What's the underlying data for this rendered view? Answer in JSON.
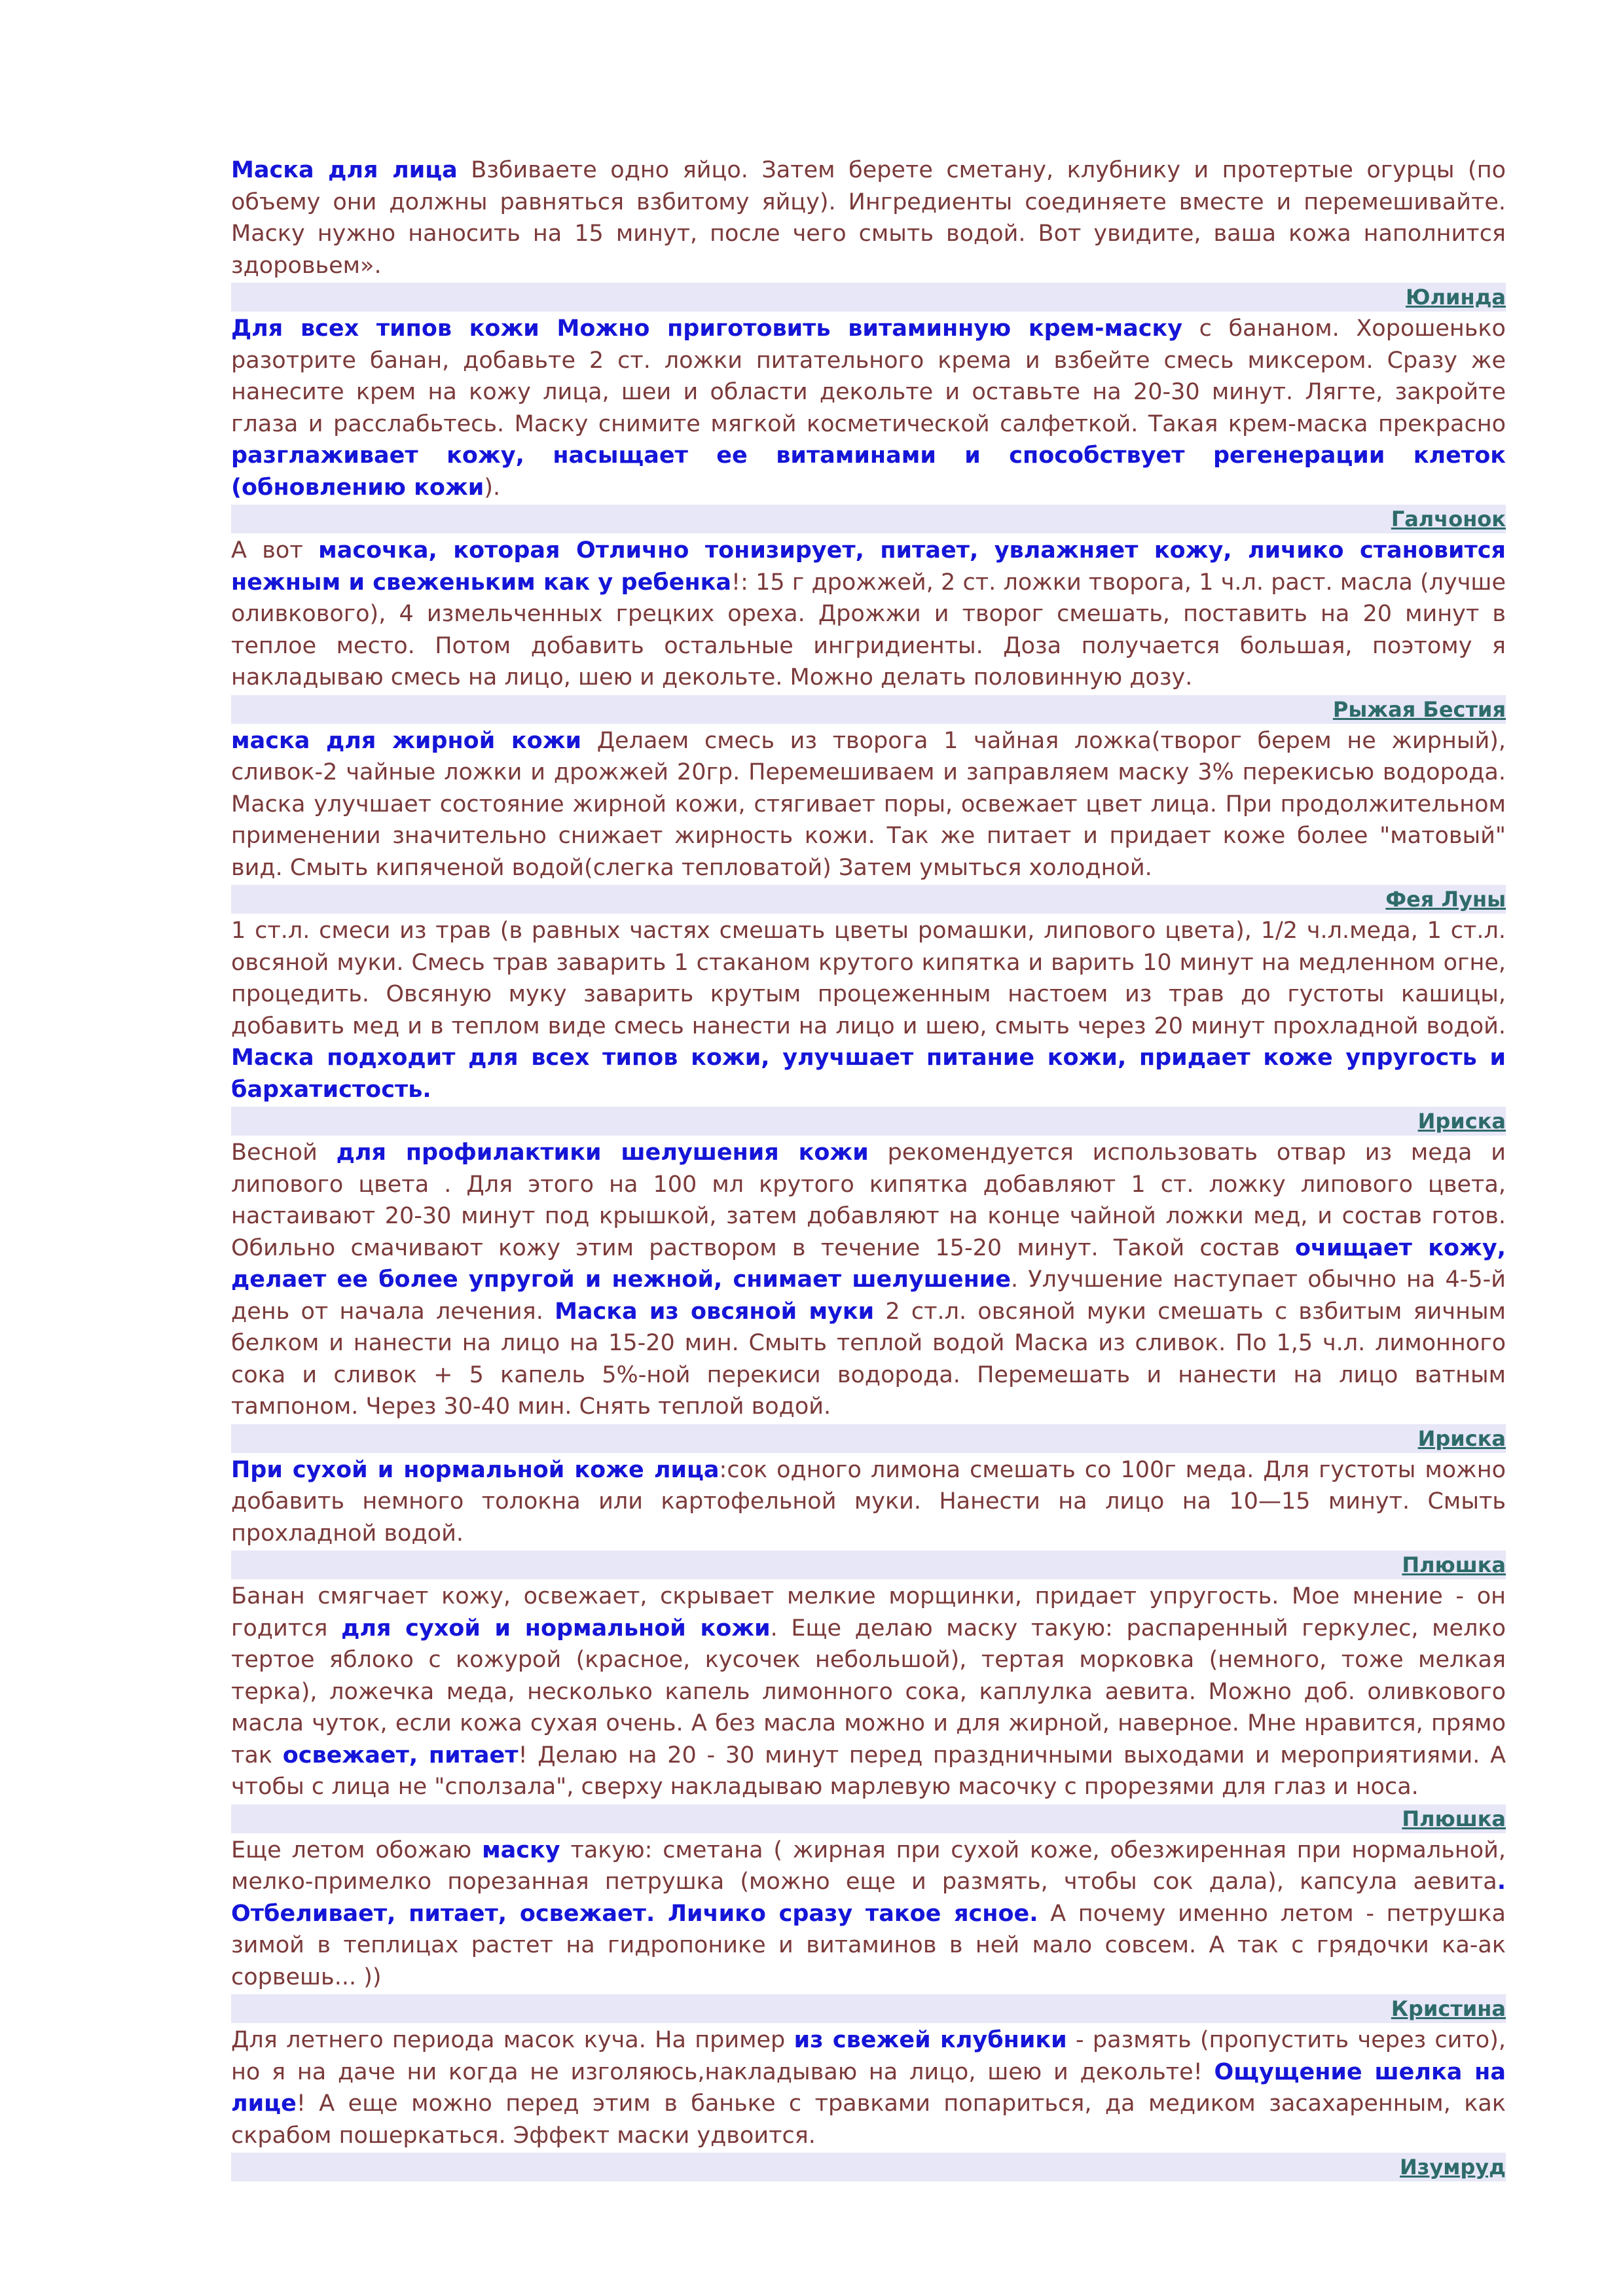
{
  "posts": [
    {
      "segments": [
        {
          "text": "Маска для лица",
          "strong": true
        },
        {
          "text": " Взбиваете одно яйцо. Затем берете сметану, клубнику и протертые огурцы (по объему они должны равняться взбитому яйцу). Ингредиенты соединяете вместе и перемешивайте. Маску нужно наносить на 15 минут, после чего смыть водой. Вот увидите, ваша кожа наполнится здоровьем».",
          "strong": false
        }
      ],
      "author": "Юлинда"
    },
    {
      "segments": [
        {
          "text": "Для всех типов кожи Можно приготовить витаминную крем-маску",
          "strong": true
        },
        {
          "text": " с бананом. Хорошенько разотрите банан, добавьте 2 ст. ложки питательного крема и взбейте смесь миксером. Сразу же нанесите крем на кожу лица, шеи и области декольте и оставьте на 20-30 минут. Лягте, закройте глаза и расслабьтесь. Маску снимите мягкой косметической салфеткой. Такая крем-маска прекрасно ",
          "strong": false
        },
        {
          "text": "разглаживает кожу, насыщает ее витаминами и способствует регенерации клеток (обновлению кожи",
          "strong": true
        },
        {
          "text": ").",
          "strong": false
        }
      ],
      "author": "Галчонок"
    },
    {
      "segments": [
        {
          "text": "А вот ",
          "strong": false
        },
        {
          "text": "масочка, которая Отлично тонизирует, питает, увлажняет кожу, личико становится нежным и свеженьким как у ребенка",
          "strong": true
        },
        {
          "text": "!: 15 г дрожжей, 2 ст. ложки творога, 1 ч.л. раст. масла (лучше оливкового), 4 измельченных грецких ореха. Дрожжи и творог смешать, поставить на 20 минут в теплое место. Потом добавить остальные ингридиенты. Доза получается большая, поэтому я накладываю смесь на лицо, шею и декольте. Можно делать половинную дозу.",
          "strong": false
        }
      ],
      "author": "Рыжая Бестия"
    },
    {
      "segments": [
        {
          "text": "маска для жирной кожи",
          "strong": true
        },
        {
          "text": " Делаем смесь из творога 1 чайная ложка(творог берем не жирный), сливок-2 чайные ложки и дрожжей 20гр. Перемешиваем и заправляем маску 3% перекисью водорода. Маска улучшает состояние жирной кожи, стягивает поры, освежает цвет лица. При продолжительном применении значительно снижает жирность кожи. Так же питает и придает коже более \"матовый\" вид. Смыть кипяченой водой(слегка тепловатой) Затем умыться холодной.",
          "strong": false
        }
      ],
      "author": "Фея Луны"
    },
    {
      "segments": [
        {
          "text": " 1 ст.л. смеси из трав (в равных частях смешать цветы ромашки, липового цвета), 1/2 ч.л.меда, 1 ст.л. овсяной муки. Смесь трав заварить 1 стаканом крутого кипятка и варить 10 минут на медленном огне, процедить. Овсяную муку заварить крутым процеженным настоем из трав до густоты кашицы, добавить мед и в теплом виде смесь нанести на лицо и шею, смыть через 20 минут прохладной водой. ",
          "strong": false
        },
        {
          "text": "Маска подходит для всех типов кожи, улучшает питание кожи, придает коже упругость и бархатистость.",
          "strong": true
        }
      ],
      "author": "Ириска"
    },
    {
      "segments": [
        {
          "text": "Весной ",
          "strong": false
        },
        {
          "text": "для профилактики шелушения кожи",
          "strong": true
        },
        {
          "text": " рекомендуется использовать отвар из меда и липового цвета . Для этого на 100 мл крутого кипятка добавляют 1 ст. ложку липового цвета, настаивают 20-30 минут под крышкой, затем добавляют на конце чайной ложки мед, и состав готов. Обильно смачивают кожу этим раствором в течение 15-20 минут. Такой состав ",
          "strong": false
        },
        {
          "text": "очищает кожу, делает ее более упругой и нежной, снимает шелушение",
          "strong": true
        },
        {
          "text": ". Улучшение наступает обычно на 4-5-й день от начала лечения. ",
          "strong": false
        },
        {
          "text": "Маска из овсяной муки",
          "strong": true
        },
        {
          "text": " 2 ст.л. овсяной муки смешать с взбитым яичным белком и нанести на лицо на 15-20 мин. Смыть теплой водой Маска из сливок. По 1,5 ч.л. лимонного сока и сливок + 5 капель 5%-ной перекиси водорода. Перемешать и нанести на лицо ватным тампоном. Через 30-40 мин. Снять теплой водой.",
          "strong": false
        }
      ],
      "author": "Ириска"
    },
    {
      "segments": [
        {
          "text": "При сухой и нормальной коже лица",
          "strong": true
        },
        {
          "text": ":сок одного лимона смешать со 100г меда. Для густоты можно добавить немного толокна или картофельной муки. Нанести на лицо на 10—15 минут. Смыть прохладной водой.",
          "strong": false
        }
      ],
      "author": "Плюшка"
    },
    {
      "segments": [
        {
          "text": "Банан смягчает кожу, освежает, скрывает мелкие морщинки, придает упругость. Мое мнение - он годится ",
          "strong": false
        },
        {
          "text": "для сухой и нормальной кожи",
          "strong": true
        },
        {
          "text": ". Еще делаю маску такую: распаренный геркулес, мелко тертое яблоко с кожурой (красное, кусочек небольшой), тертая морковка (немного, тоже мелкая терка), ложечка меда, несколько капель лимонного сока, каплулка аевита. Можно доб. оливкового масла чуток, если кожа сухая очень. А без масла можно и для жирной, наверное. Мне нравится, прямо так ",
          "strong": false
        },
        {
          "text": "освежает, питает",
          "strong": true
        },
        {
          "text": "! Делаю на 20 - 30 минут перед праздничными выходами и мероприятиями. А чтобы с лица не \"сползала\", сверху накладываю марлевую масочку с прорезями для глаз и носа.",
          "strong": false
        }
      ],
      "author": "Плюшка"
    },
    {
      "segments": [
        {
          "text": "Еще летом обожаю ",
          "strong": false
        },
        {
          "text": "маску",
          "strong": true
        },
        {
          "text": " такую: сметана ( жирная при сухой коже, обезжиренная при нормальной, мелко-примелко порезанная петрушка (можно еще и размять, чтобы сок дала), капсула аевита",
          "strong": false
        },
        {
          "text": ". Отбеливает, питает, освежает. Личико сразу такое ясное.",
          "strong": true
        },
        {
          "text": " А почему именно летом - петрушка зимой в теплицах растет на гидропонике и витаминов в ней мало совсем. А так с грядочки ка-ак сорвешь... ))",
          "strong": false
        }
      ],
      "author": "Кристина"
    },
    {
      "segments": [
        {
          "text": "Для летнего периода масок куча. На пример ",
          "strong": false
        },
        {
          "text": "из свежей клубники",
          "strong": true
        },
        {
          "text": " - размять (пропустить через сито), но я на даче ни когда не изголяюсь,накладываю на лицо, шею и декольте! ",
          "strong": false
        },
        {
          "text": "Ощущение шелка на лице",
          "strong": true
        },
        {
          "text": "! А еще можно перед этим в баньке с травками попариться, да медиком засахаренным, как скрабом пошеркаться. Эффект маски удвоится.",
          "strong": false
        }
      ],
      "author": "Изумруд"
    }
  ]
}
